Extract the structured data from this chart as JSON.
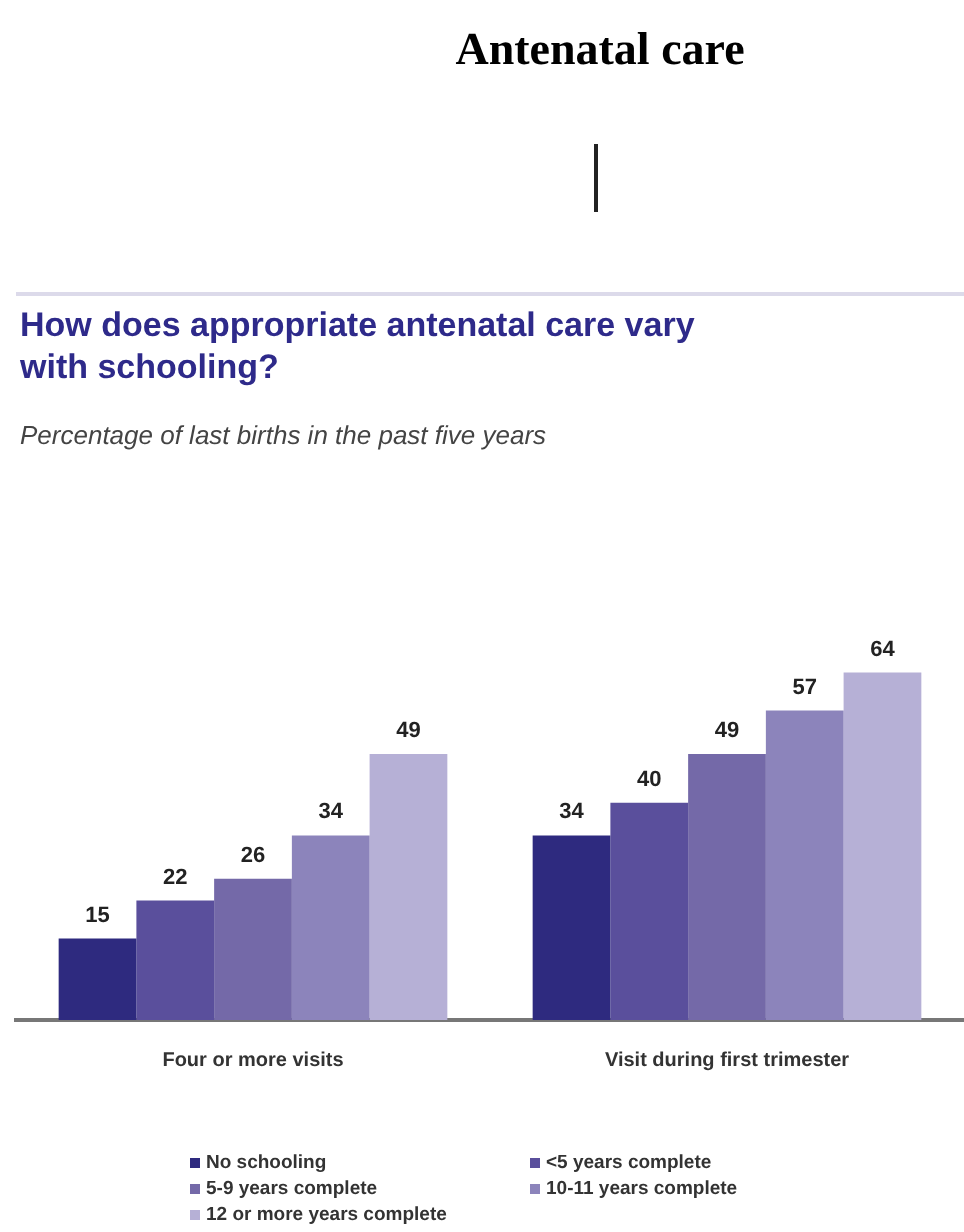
{
  "chart_data": {
    "type": "bar",
    "title": "Antenatal care",
    "subtitle": "How does appropriate antenatal care vary with schooling?",
    "annotations": [
      "Percentage of last births in the past five years"
    ],
    "categories": [
      "Four or more visits",
      "Visit during first trimester"
    ],
    "series": [
      {
        "name": "No schooling",
        "color": "#2e2a7f",
        "values": [
          15,
          34
        ]
      },
      {
        "name": "<5 years complete",
        "color": "#5a4f9c",
        "values": [
          22,
          40
        ]
      },
      {
        "name": "5-9 years complete",
        "color": "#7469a8",
        "values": [
          26,
          49
        ]
      },
      {
        "name": "10-11 years complete",
        "color": "#8c84bb",
        "values": [
          34,
          57
        ]
      },
      {
        "name": "12 or more years complete",
        "color": "#b6b0d6",
        "values": [
          49,
          64
        ]
      }
    ],
    "data_labels": true,
    "legend": "bottom",
    "grid": false
  }
}
